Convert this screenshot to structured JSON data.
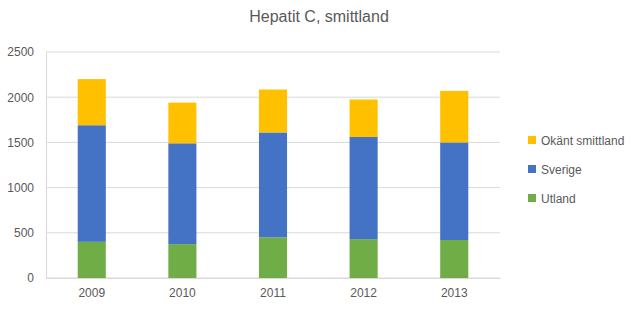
{
  "chart_data": {
    "type": "bar",
    "title": "Hepatit C, smittland",
    "categories": [
      "2009",
      "2010",
      "2011",
      "2012",
      "2013"
    ],
    "series": [
      {
        "name": "Utland",
        "color": "#70ad47",
        "values": [
          400,
          375,
          450,
          430,
          420
        ]
      },
      {
        "name": "Sverige",
        "color": "#4472c4",
        "values": [
          1290,
          1115,
          1160,
          1130,
          1080
        ]
      },
      {
        "name": "Okänt smittland",
        "color": "#ffc000",
        "values": [
          510,
          450,
          475,
          415,
          570
        ]
      }
    ],
    "ylim": [
      0,
      2500
    ],
    "yticks": [
      0,
      500,
      1000,
      1500,
      2000,
      2500
    ],
    "grid": true,
    "stacked": true,
    "legend": "right"
  }
}
